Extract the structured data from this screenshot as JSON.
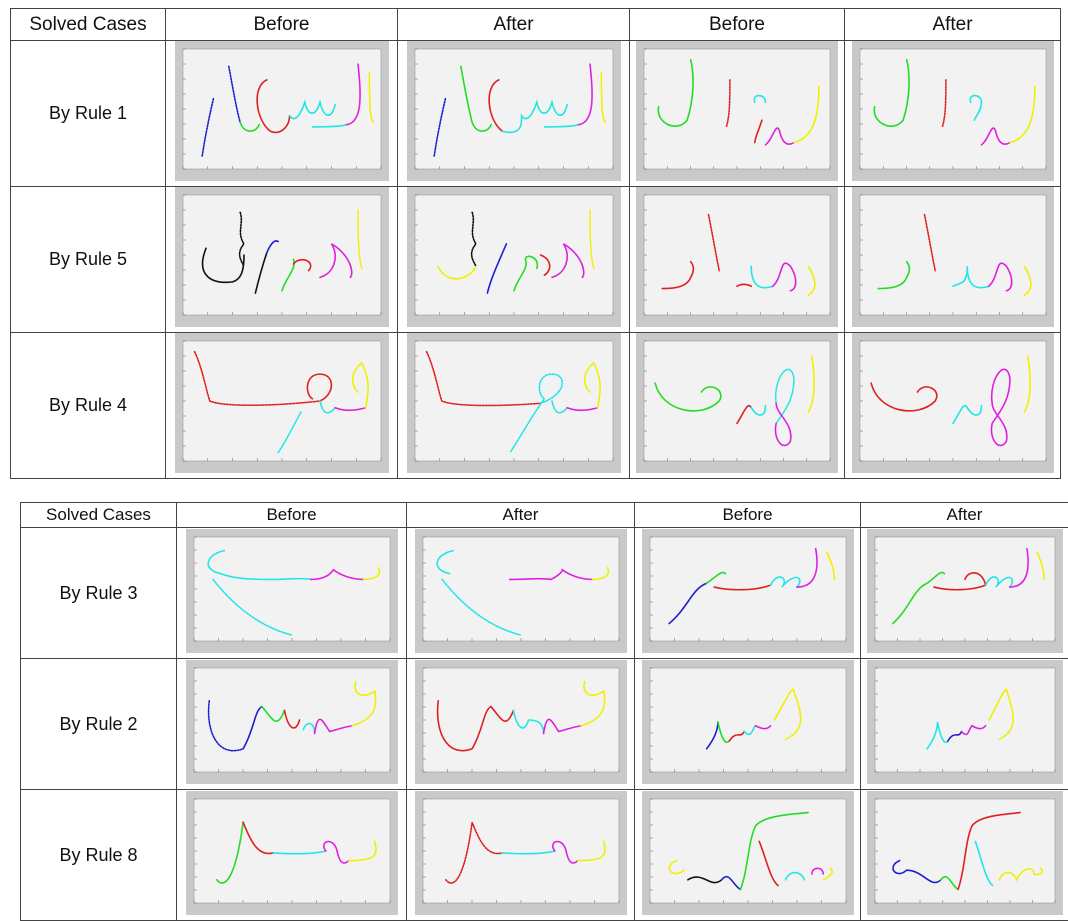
{
  "table1": {
    "header": [
      "Solved Cases",
      "Before",
      "After",
      "Before",
      "After"
    ],
    "rows": [
      {
        "label": "By Rule 1"
      },
      {
        "label": "By Rule 5"
      },
      {
        "label": "By Rule 4"
      }
    ]
  },
  "table2": {
    "header": [
      "Solved Cases",
      "Before",
      "After",
      "Before",
      "After"
    ],
    "rows": [
      {
        "label": "By Rule 3"
      },
      {
        "label": "By Rule 2"
      },
      {
        "label": "By Rule 8"
      }
    ]
  },
  "colors": {
    "blue": "#1f1fd0",
    "green": "#22dd22",
    "red": "#e02020",
    "cyan": "#22e6e6",
    "magenta": "#e020e0",
    "yellow": "#f0f000",
    "black": "#111111",
    "plot_bg": "#f2f2f2",
    "plot_frame": "#c9c9c9"
  }
}
